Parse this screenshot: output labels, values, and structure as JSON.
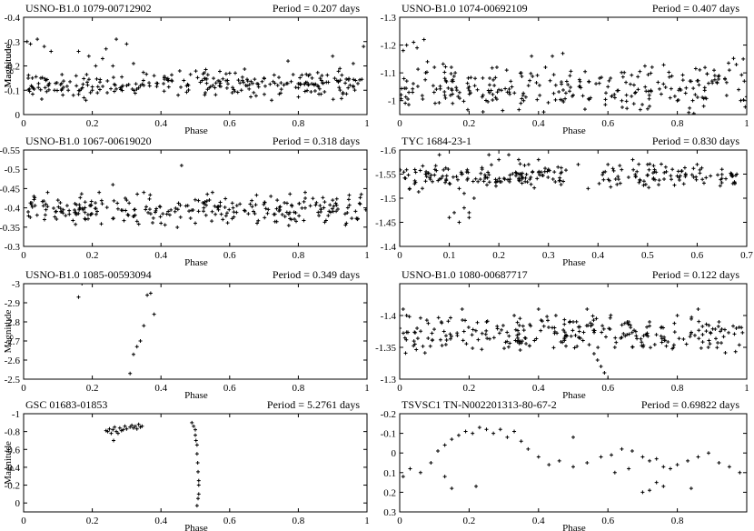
{
  "chart_data": [
    {
      "type": "scatter",
      "title": "USNO-B1.0 1079-00712902",
      "annotation": "Period = 0.207 days",
      "xlabel": "Phase",
      "ylabel": "Magnitude",
      "xlim": [
        0,
        1
      ],
      "ylim": [
        -0.4,
        0
      ],
      "y_inverted": true,
      "xticks": [
        "0",
        "0.2",
        "0.4",
        "0.6",
        "0.8",
        "1"
      ],
      "yticks": [
        "-0.4",
        "-0.3",
        "-0.2",
        "-0.1",
        "0"
      ],
      "points": [
        [
          0.01,
          -0.3
        ],
        [
          0.02,
          -0.29
        ],
        [
          0.04,
          -0.31
        ],
        [
          0.05,
          -0.15
        ],
        [
          0.06,
          -0.28
        ],
        [
          0.08,
          -0.26
        ],
        [
          0.09,
          -0.1
        ],
        [
          0.11,
          -0.1
        ],
        [
          0.13,
          -0.1
        ],
        [
          0.16,
          -0.26
        ],
        [
          0.19,
          -0.24
        ],
        [
          0.2,
          -0.1
        ],
        [
          0.21,
          -0.2
        ],
        [
          0.23,
          -0.23
        ],
        [
          0.24,
          -0.27
        ],
        [
          0.26,
          -0.2
        ],
        [
          0.27,
          -0.31
        ],
        [
          0.3,
          -0.29
        ],
        [
          0.32,
          -0.21
        ],
        [
          0.35,
          -0.12
        ],
        [
          0.38,
          -0.16
        ],
        [
          0.42,
          -0.14
        ],
        [
          0.45,
          -0.08
        ],
        [
          0.48,
          -0.12
        ],
        [
          0.52,
          -0.14
        ],
        [
          0.56,
          -0.13
        ],
        [
          0.6,
          -0.17
        ],
        [
          0.63,
          -0.13
        ],
        [
          0.67,
          -0.09
        ],
        [
          0.7,
          -0.15
        ],
        [
          0.74,
          -0.12
        ],
        [
          0.77,
          -0.22
        ],
        [
          0.8,
          -0.11
        ],
        [
          0.84,
          -0.15
        ],
        [
          0.87,
          -0.13
        ],
        [
          0.9,
          -0.24
        ],
        [
          0.93,
          -0.09
        ],
        [
          0.96,
          -0.21
        ],
        [
          0.99,
          -0.28
        ]
      ],
      "band": {
        "center": -0.125,
        "spread": 0.03
      }
    },
    {
      "type": "scatter",
      "title": "USNO-B1.0 1074-00692109",
      "annotation": "Period = 0.407 days",
      "xlabel": "Phase",
      "ylabel": "Magnitude",
      "xlim": [
        0,
        1
      ],
      "ylim": [
        -1.3,
        -0.95
      ],
      "y_inverted": true,
      "xticks": [
        "0",
        "0.2",
        "0.4",
        "0.6",
        "0.8",
        "1"
      ],
      "yticks": [
        "-1.3",
        "-1.2",
        "-1.1",
        "-1"
      ],
      "points": [
        [
          0.01,
          -1.18
        ],
        [
          0.02,
          -1.2
        ],
        [
          0.04,
          -1.21
        ],
        [
          0.05,
          -1.19
        ],
        [
          0.07,
          -1.22
        ],
        [
          0.08,
          -1.14
        ],
        [
          0.1,
          -1.12
        ],
        [
          0.13,
          -1.08
        ],
        [
          0.16,
          -1.1
        ],
        [
          0.2,
          -1.05
        ],
        [
          0.24,
          -1.02
        ],
        [
          0.28,
          -1.12
        ],
        [
          0.32,
          -1.07
        ],
        [
          0.35,
          -1.1
        ],
        [
          0.38,
          -1.16
        ],
        [
          0.42,
          -1.12
        ],
        [
          0.44,
          -1.16
        ],
        [
          0.47,
          -1.17
        ],
        [
          0.5,
          -1.02
        ],
        [
          0.55,
          -1.01
        ],
        [
          0.6,
          -1.05
        ],
        [
          0.64,
          -1.0
        ],
        [
          0.68,
          -1.03
        ],
        [
          0.72,
          -0.98
        ],
        [
          0.76,
          -1.06
        ],
        [
          0.8,
          -1.0
        ],
        [
          0.84,
          -1.07
        ],
        [
          0.88,
          -1.01
        ],
        [
          0.92,
          -1.09
        ],
        [
          0.95,
          -1.11
        ],
        [
          0.97,
          -1.13
        ],
        [
          0.99,
          -1.15
        ]
      ],
      "band": {
        "center": -1.04,
        "spread": 0.05
      }
    },
    {
      "type": "scatter",
      "title": "USNO-B1.0 1067-00619020",
      "annotation": "Period = 0.318 days",
      "xlabel": "Phase",
      "ylabel": "",
      "xlim": [
        0,
        1
      ],
      "ylim": [
        -0.55,
        -0.3
      ],
      "y_inverted": true,
      "xticks": [
        "0",
        "0.2",
        "0.4",
        "0.6",
        "0.8",
        "1"
      ],
      "yticks": [
        "-0.55",
        "-0.5",
        "-0.45",
        "-0.4",
        "-0.35",
        "-0.3"
      ],
      "points": [
        [
          0.03,
          -0.43
        ],
        [
          0.07,
          -0.44
        ],
        [
          0.1,
          -0.42
        ],
        [
          0.18,
          -0.37
        ],
        [
          0.22,
          -0.44
        ],
        [
          0.26,
          -0.46
        ],
        [
          0.3,
          -0.42
        ],
        [
          0.35,
          -0.44
        ],
        [
          0.4,
          -0.36
        ],
        [
          0.46,
          -0.51
        ],
        [
          0.5,
          -0.36
        ],
        [
          0.55,
          -0.44
        ],
        [
          0.58,
          -0.37
        ],
        [
          0.63,
          -0.41
        ],
        [
          0.68,
          -0.36
        ],
        [
          0.72,
          -0.43
        ],
        [
          0.78,
          -0.37
        ],
        [
          0.82,
          -0.44
        ],
        [
          0.86,
          -0.38
        ],
        [
          0.9,
          -0.42
        ],
        [
          0.94,
          -0.36
        ],
        [
          0.98,
          -0.41
        ]
      ],
      "band": {
        "center": -0.395,
        "spread": 0.022
      }
    },
    {
      "type": "scatter",
      "title": "TYC 1684-23-1",
      "annotation": "Period = 0.830 days",
      "xlabel": "Phase",
      "ylabel": "",
      "xlim": [
        0,
        0.7
      ],
      "ylim": [
        -1.6,
        -1.4
      ],
      "y_inverted": true,
      "xticks": [
        "0",
        "0.1",
        "0.2",
        "0.3",
        "0.4",
        "0.5",
        "0.6",
        "0.7"
      ],
      "yticks": [
        "-1.6",
        "-1.55",
        "-1.5",
        "-1.45",
        "-1.4"
      ],
      "points": [
        [
          0.02,
          -1.52
        ],
        [
          0.03,
          -1.53
        ],
        [
          0.1,
          -1.46
        ],
        [
          0.11,
          -1.47
        ],
        [
          0.12,
          -1.45
        ],
        [
          0.13,
          -1.48
        ],
        [
          0.14,
          -1.47
        ],
        [
          0.14,
          -1.46
        ],
        [
          0.15,
          -1.5
        ],
        [
          0.13,
          -1.51
        ],
        [
          0.12,
          -1.52
        ],
        [
          0.2,
          -1.58
        ],
        [
          0.22,
          -1.59
        ],
        [
          0.24,
          -1.58
        ],
        [
          0.26,
          -1.57
        ],
        [
          0.28,
          -1.58
        ],
        [
          0.3,
          -1.56
        ],
        [
          0.18,
          -1.59
        ],
        [
          0.08,
          -1.59
        ],
        [
          0.36,
          -1.57
        ],
        [
          0.38,
          -1.52
        ],
        [
          0.42,
          -1.57
        ],
        [
          0.47,
          -1.58
        ],
        [
          0.5,
          -1.57
        ],
        [
          0.55,
          -1.56
        ],
        [
          0.6,
          -1.57
        ],
        [
          0.65,
          -1.56
        ],
        [
          0.68,
          -1.55
        ]
      ],
      "band": {
        "center": -1.545,
        "spread": 0.015,
        "xmax": 0.68,
        "gap": [
          0.34,
          0.4
        ]
      }
    },
    {
      "type": "scatter",
      "title": "USNO-B1.0 1085-00593094",
      "annotation": "Period = 0.349 days",
      "xlabel": "Phase",
      "ylabel": "Magnitude",
      "xlim": [
        0,
        1
      ],
      "ylim": [
        -3,
        -2.5
      ],
      "y_inverted": true,
      "xticks": [
        "0",
        "0.2",
        "0.4",
        "0.6",
        "0.8",
        "1"
      ],
      "yticks": [
        "-3",
        "-2.9",
        "-2.8",
        "-2.7",
        "-2.6",
        "-2.5"
      ],
      "points": [
        [
          0.16,
          -2.93
        ],
        [
          0.17,
          -3.0
        ],
        [
          0.31,
          -2.53
        ],
        [
          0.32,
          -2.63
        ],
        [
          0.33,
          -2.67
        ],
        [
          0.34,
          -2.7
        ],
        [
          0.35,
          -2.78
        ],
        [
          0.36,
          -2.94
        ],
        [
          0.37,
          -2.95
        ],
        [
          0.38,
          -2.84
        ]
      ]
    },
    {
      "type": "scatter",
      "title": "USNO-B1.0 1080-00687717",
      "annotation": "Period = 0.122 days",
      "xlabel": "Phase",
      "ylabel": "",
      "xlim": [
        0,
        1
      ],
      "ylim": [
        -1.45,
        -1.3
      ],
      "y_inverted": true,
      "xticks": [
        "0",
        "0.2",
        "0.4",
        "0.6",
        "0.8",
        "1"
      ],
      "yticks": [
        "-1.4",
        "-1.35",
        "-1.3"
      ],
      "points": [
        [
          0.01,
          -1.41
        ],
        [
          0.02,
          -1.4
        ],
        [
          0.05,
          -1.38
        ],
        [
          0.12,
          -1.39
        ],
        [
          0.18,
          -1.41
        ],
        [
          0.25,
          -1.39
        ],
        [
          0.33,
          -1.4
        ],
        [
          0.4,
          -1.41
        ],
        [
          0.45,
          -1.4
        ],
        [
          0.5,
          -1.39
        ],
        [
          0.54,
          -1.41
        ],
        [
          0.57,
          -1.33
        ],
        [
          0.58,
          -1.32
        ],
        [
          0.59,
          -1.31
        ],
        [
          0.6,
          -1.3
        ],
        [
          0.56,
          -1.34
        ],
        [
          0.62,
          -1.35
        ],
        [
          0.66,
          -1.39
        ],
        [
          0.72,
          -1.39
        ],
        [
          0.8,
          -1.4
        ],
        [
          0.86,
          -1.41
        ],
        [
          0.92,
          -1.39
        ],
        [
          0.97,
          -1.38
        ]
      ],
      "band": {
        "center": -1.37,
        "spread": 0.015
      }
    },
    {
      "type": "scatter",
      "title": "GSC 01683-01853",
      "annotation": "Period = 5.2761 days",
      "xlabel": "Phase",
      "ylabel": "Magnitude",
      "xlim": [
        0,
        1
      ],
      "ylim": [
        -1,
        0.1
      ],
      "y_inverted": true,
      "xticks": [
        "0",
        "0.2",
        "0.4",
        "0.6",
        "0.8",
        "1"
      ],
      "yticks": [
        "-1",
        "-0.8",
        "-0.6",
        "-0.4",
        "-0.2",
        "0"
      ],
      "points": [
        [
          0.24,
          -0.81
        ],
        [
          0.245,
          -0.8
        ],
        [
          0.25,
          -0.83
        ],
        [
          0.255,
          -0.78
        ],
        [
          0.26,
          -0.82
        ],
        [
          0.262,
          -0.7
        ],
        [
          0.265,
          -0.85
        ],
        [
          0.27,
          -0.8
        ],
        [
          0.275,
          -0.78
        ],
        [
          0.28,
          -0.84
        ],
        [
          0.285,
          -0.81
        ],
        [
          0.29,
          -0.82
        ],
        [
          0.295,
          -0.86
        ],
        [
          0.3,
          -0.83
        ],
        [
          0.31,
          -0.85
        ],
        [
          0.315,
          -0.87
        ],
        [
          0.32,
          -0.84
        ],
        [
          0.325,
          -0.86
        ],
        [
          0.33,
          -0.83
        ],
        [
          0.335,
          -0.88
        ],
        [
          0.34,
          -0.85
        ],
        [
          0.345,
          -0.86
        ],
        [
          0.49,
          -0.9
        ],
        [
          0.495,
          -0.86
        ],
        [
          0.5,
          -0.82
        ],
        [
          0.5,
          -0.76
        ],
        [
          0.502,
          -0.7
        ],
        [
          0.505,
          -0.65
        ],
        [
          0.505,
          -0.55
        ],
        [
          0.507,
          -0.45
        ],
        [
          0.508,
          -0.35
        ],
        [
          0.51,
          -0.25
        ],
        [
          0.51,
          -0.2
        ],
        [
          0.51,
          -0.1
        ],
        [
          0.508,
          -0.05
        ],
        [
          0.505,
          0.03
        ]
      ]
    },
    {
      "type": "scatter",
      "title": "TSVSC1 TN-N002201313-80-67-2",
      "annotation": "Period = 0.69822 days",
      "xlabel": "Phase",
      "ylabel": "",
      "xlim": [
        0,
        1
      ],
      "ylim": [
        -0.2,
        0.3
      ],
      "y_inverted": true,
      "xticks": [
        "0",
        "0.2",
        "0.4",
        "0.6",
        "0.8"
      ],
      "yticks": [
        "-0.2",
        "-0.1",
        "0",
        "0.1",
        "0.2",
        "0.3"
      ],
      "points": [
        [
          0.01,
          0.12
        ],
        [
          0.03,
          0.08
        ],
        [
          0.06,
          0.1
        ],
        [
          0.09,
          0.05
        ],
        [
          0.11,
          -0.01
        ],
        [
          0.13,
          -0.04
        ],
        [
          0.15,
          -0.07
        ],
        [
          0.17,
          -0.09
        ],
        [
          0.19,
          -0.11
        ],
        [
          0.21,
          -0.1
        ],
        [
          0.23,
          -0.13
        ],
        [
          0.25,
          -0.12
        ],
        [
          0.27,
          -0.1
        ],
        [
          0.29,
          -0.12
        ],
        [
          0.31,
          -0.08
        ],
        [
          0.33,
          -0.11
        ],
        [
          0.35,
          -0.06
        ],
        [
          0.37,
          -0.02
        ],
        [
          0.4,
          0.02
        ],
        [
          0.43,
          0.06
        ],
        [
          0.46,
          0.04
        ],
        [
          0.5,
          0.07
        ],
        [
          0.54,
          0.05
        ],
        [
          0.58,
          0.02
        ],
        [
          0.61,
          0.01
        ],
        [
          0.64,
          -0.02
        ],
        [
          0.67,
          -0.01
        ],
        [
          0.7,
          0.02
        ],
        [
          0.72,
          0.04
        ],
        [
          0.74,
          0.03
        ],
        [
          0.76,
          0.07
        ],
        [
          0.78,
          0.08
        ],
        [
          0.8,
          0.06
        ],
        [
          0.83,
          0.04
        ],
        [
          0.86,
          0.02
        ],
        [
          0.89,
          0.0
        ],
        [
          0.92,
          0.05
        ],
        [
          0.95,
          0.07
        ],
        [
          0.98,
          0.1
        ],
        [
          0.13,
          0.12
        ],
        [
          0.15,
          0.18
        ],
        [
          0.22,
          0.17
        ],
        [
          0.62,
          0.1
        ],
        [
          0.66,
          0.08
        ],
        [
          0.7,
          0.2
        ],
        [
          0.72,
          0.19
        ],
        [
          0.74,
          0.15
        ],
        [
          0.76,
          0.17
        ],
        [
          0.84,
          0.18
        ],
        [
          0.5,
          -0.08
        ]
      ]
    }
  ]
}
